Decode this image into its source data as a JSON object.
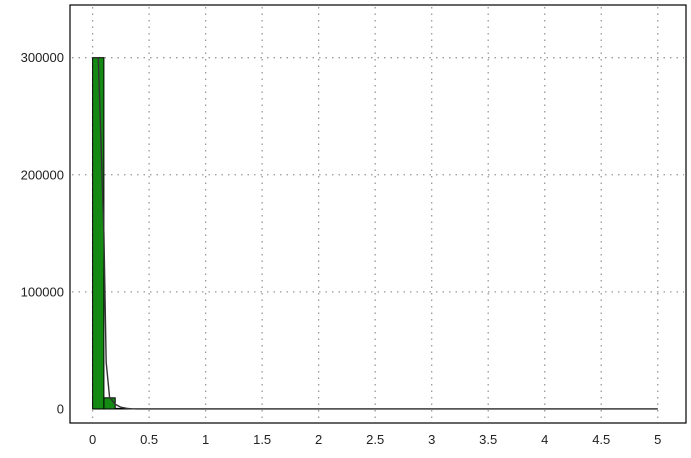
{
  "chart_data": {
    "type": "bar",
    "title": "",
    "xlabel": "",
    "ylabel": "",
    "xlim": [
      -0.2,
      5.25
    ],
    "ylim": [
      -12000,
      345000
    ],
    "grid": true,
    "x_ticks": [
      "0",
      "0.5",
      "1",
      "1.5",
      "2",
      "2.5",
      "3",
      "3.5",
      "4",
      "4.5",
      "5"
    ],
    "y_ticks": [
      "0",
      "100000",
      "200000",
      "300000"
    ],
    "bin_width": 0.1,
    "bins": [
      {
        "x0": 0.0,
        "x1": 0.1,
        "value": 300000
      },
      {
        "x0": 0.1,
        "x1": 0.2,
        "value": 9500
      },
      {
        "x0": 0.2,
        "x1": 0.3,
        "value": 500
      }
    ],
    "curve": {
      "x": [
        0.0,
        0.05,
        0.1,
        0.12,
        0.15,
        0.2,
        0.25,
        0.3,
        0.35,
        0.4,
        0.5,
        1,
        2,
        3,
        4,
        5
      ],
      "y": [
        300000,
        300000,
        150000,
        40000,
        10000,
        4000,
        1500,
        500,
        100,
        0,
        0,
        0,
        0,
        0,
        0,
        0
      ]
    },
    "colors": {
      "bar": "#148a14",
      "bar_stroke": "#000000",
      "curve": "#333333",
      "grid": "#999999"
    }
  }
}
